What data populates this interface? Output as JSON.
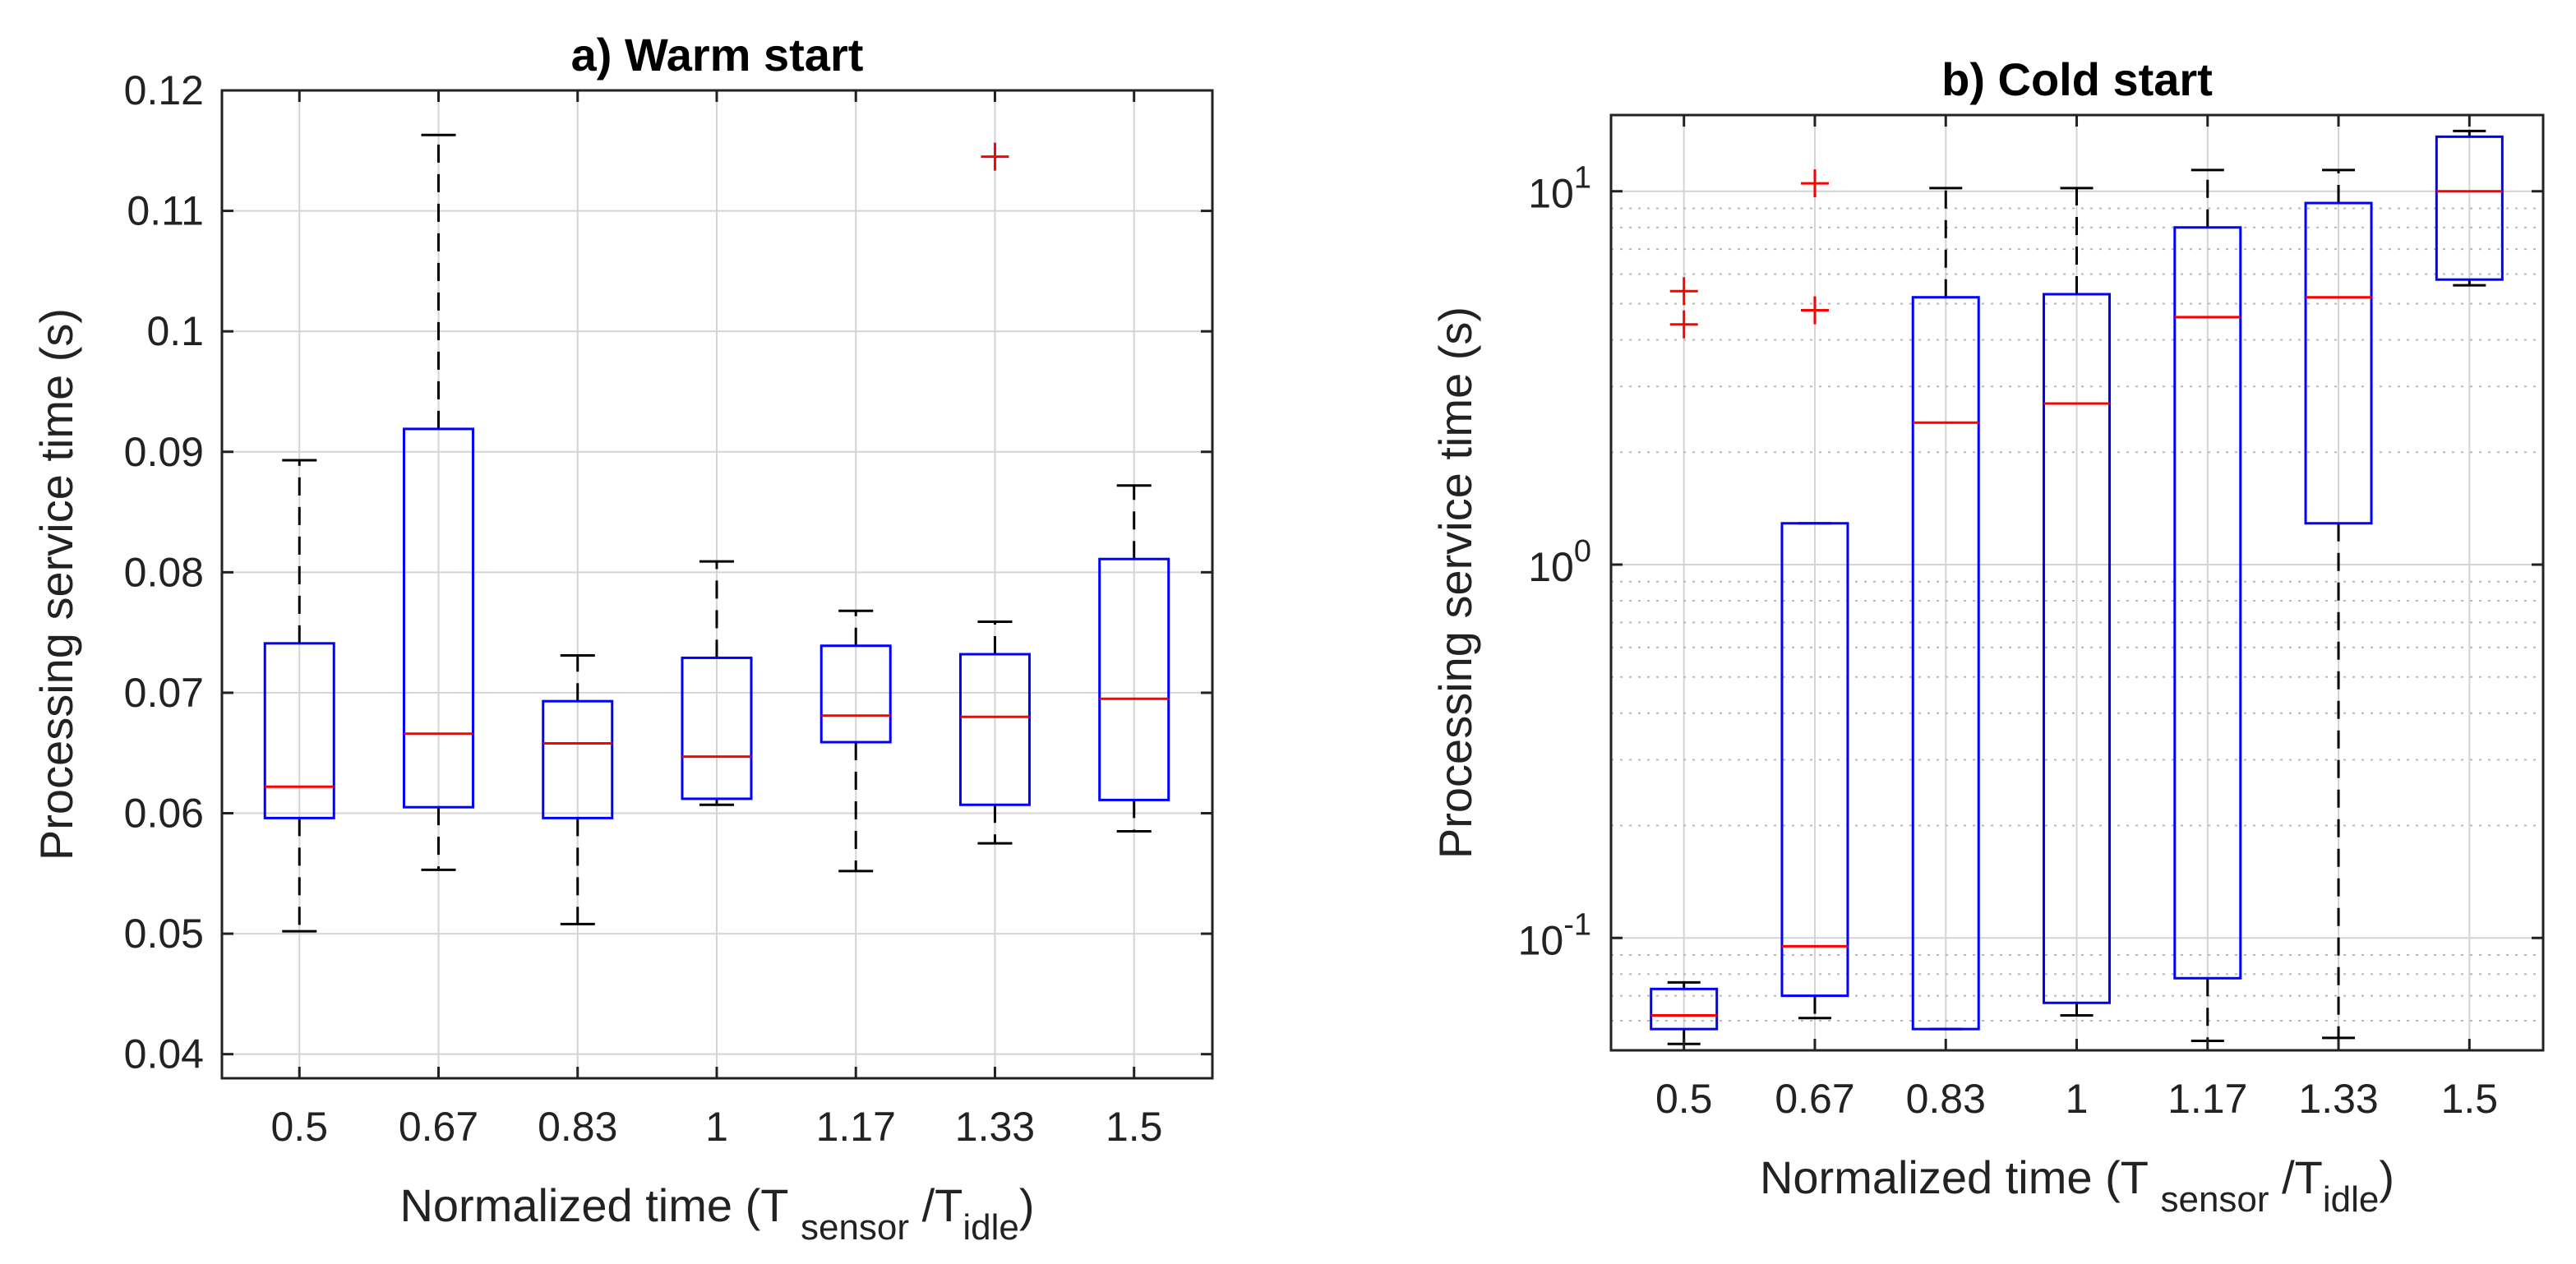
{
  "chart_data": [
    {
      "type": "box",
      "title": "a) Warm start",
      "ylabel": "Processing service time (s)",
      "xlabel": {
        "prefix": "Normalized time (T",
        "sub1": "sensor",
        "mid": "/T",
        "sub2": "idle",
        "suffix": ")"
      },
      "yscale": "linear",
      "ylim": [
        0.038,
        0.12
      ],
      "yticks": [
        0.04,
        0.05,
        0.06,
        0.07,
        0.08,
        0.09,
        0.1,
        0.11,
        0.12
      ],
      "ytick_labels": [
        "0.04",
        "0.05",
        "0.06",
        "0.07",
        "0.08",
        "0.09",
        "0.1",
        "0.11",
        "0.12"
      ],
      "categories": [
        "0.5",
        "0.67",
        "0.83",
        "1",
        "1.17",
        "1.33",
        "1.5"
      ],
      "boxes": [
        {
          "whisker_low": 0.0502,
          "q1": 0.0596,
          "median": 0.0622,
          "q3": 0.0741,
          "whisker_high": 0.0893,
          "outliers": []
        },
        {
          "whisker_low": 0.0553,
          "q1": 0.0605,
          "median": 0.0666,
          "q3": 0.0919,
          "whisker_high": 0.1163,
          "outliers": []
        },
        {
          "whisker_low": 0.0508,
          "q1": 0.0596,
          "median": 0.0658,
          "q3": 0.0693,
          "whisker_high": 0.0731,
          "outliers": []
        },
        {
          "whisker_low": 0.0607,
          "q1": 0.0612,
          "median": 0.0647,
          "q3": 0.0729,
          "whisker_high": 0.0809,
          "outliers": []
        },
        {
          "whisker_low": 0.0552,
          "q1": 0.0659,
          "median": 0.0681,
          "q3": 0.0739,
          "whisker_high": 0.0768,
          "outliers": []
        },
        {
          "whisker_low": 0.0575,
          "q1": 0.0607,
          "median": 0.068,
          "q3": 0.0732,
          "whisker_high": 0.0759,
          "outliers": [
            0.1145
          ]
        },
        {
          "whisker_low": 0.0585,
          "q1": 0.0611,
          "median": 0.0695,
          "q3": 0.0811,
          "whisker_high": 0.0872,
          "outliers": []
        }
      ]
    },
    {
      "type": "box",
      "title": "b) Cold start",
      "ylabel": "Processing service time (s)",
      "xlabel": {
        "prefix": "Normalized time (T",
        "sub1": "sensor",
        "mid": "/T",
        "sub2": "idle",
        "suffix": ")"
      },
      "yscale": "log",
      "ylim": [
        0.05,
        16
      ],
      "yticks": [
        0.1,
        1,
        10
      ],
      "ytick_labels": [
        {
          "base": "10",
          "exp": "-1"
        },
        {
          "base": "10",
          "exp": "0"
        },
        {
          "base": "10",
          "exp": "1"
        }
      ],
      "categories": [
        "0.5",
        "0.67",
        "0.83",
        "1",
        "1.17",
        "1.33",
        "1.5"
      ],
      "boxes": [
        {
          "whisker_low": 0.052,
          "q1": 0.057,
          "median": 0.062,
          "q3": 0.073,
          "whisker_high": 0.076,
          "outliers": [
            4.4,
            5.4
          ]
        },
        {
          "whisker_low": 0.061,
          "q1": 0.07,
          "median": 0.095,
          "q3": 1.29,
          "whisker_high": 1.29,
          "outliers": [
            4.8,
            10.5
          ]
        },
        {
          "whisker_low": 0.057,
          "q1": 0.057,
          "median": 2.4,
          "q3": 5.2,
          "whisker_high": 10.2,
          "outliers": []
        },
        {
          "whisker_low": 0.062,
          "q1": 0.067,
          "median": 2.7,
          "q3": 5.3,
          "whisker_high": 10.2,
          "outliers": []
        },
        {
          "whisker_low": 0.053,
          "q1": 0.078,
          "median": 4.6,
          "q3": 8.0,
          "whisker_high": 11.4,
          "outliers": []
        },
        {
          "whisker_low": 0.054,
          "q1": 1.29,
          "median": 5.2,
          "q3": 9.3,
          "whisker_high": 11.4,
          "outliers": []
        },
        {
          "whisker_low": 5.6,
          "q1": 5.8,
          "median": 10.0,
          "q3": 14.0,
          "whisker_high": 14.5,
          "outliers": []
        }
      ]
    }
  ],
  "colors": {
    "box": "#0000ff",
    "median": "#ff0000",
    "outlier": "#ff0000",
    "whisker": "#000000",
    "grid": "#d4d4d4",
    "minor_grid": "#b8b8b8"
  }
}
